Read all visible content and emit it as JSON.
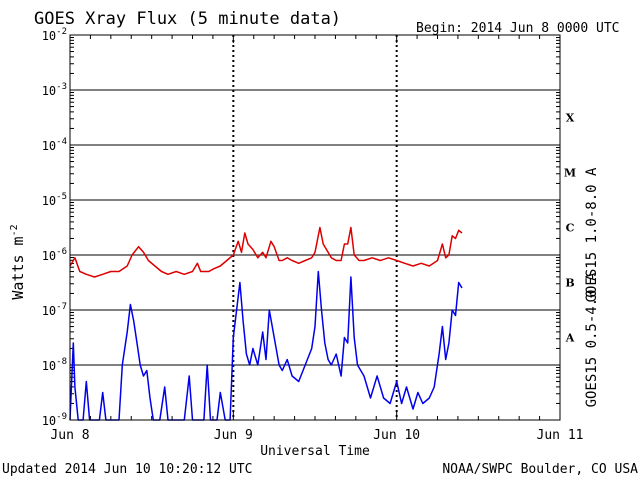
{
  "chart_data": {
    "type": "line",
    "title": "GOES Xray Flux (5 minute data)",
    "begin_label": "Begin:  2014 Jun 8 0000 UTC",
    "ylabel_main": "Watts m",
    "ylabel_sup": "-2",
    "xlabel": "Universal Time",
    "updated": "Updated 2014 Jun 10 10:20:12 UTC",
    "credit": "NOAA/SWPC Boulder, CO USA",
    "yscale": "log",
    "ylim_exp": [
      -9,
      -2
    ],
    "xlim_days": [
      0,
      3
    ],
    "x_ticks": [
      {
        "day": 0,
        "label": "Jun 8"
      },
      {
        "day": 1,
        "label": "Jun 9"
      },
      {
        "day": 2,
        "label": "Jun 10"
      },
      {
        "day": 3,
        "label": "Jun 11"
      }
    ],
    "y_ticks": [
      {
        "exp": -2,
        "base": "10",
        "sup": "-2"
      },
      {
        "exp": -3,
        "base": "10",
        "sup": "-3"
      },
      {
        "exp": -4,
        "base": "10",
        "sup": "-4"
      },
      {
        "exp": -5,
        "base": "10",
        "sup": "-5"
      },
      {
        "exp": -6,
        "base": "10",
        "sup": "-6"
      },
      {
        "exp": -7,
        "base": "10",
        "sup": "-7"
      },
      {
        "exp": -8,
        "base": "10",
        "sup": "-8"
      },
      {
        "exp": -9,
        "base": "10",
        "sup": "-9"
      }
    ],
    "flare_classes": [
      {
        "label": "X",
        "exp": -3.5
      },
      {
        "label": "M",
        "exp": -4.5
      },
      {
        "label": "C",
        "exp": -5.5
      },
      {
        "label": "B",
        "exp": -6.5
      },
      {
        "label": "A",
        "exp": -7.5
      }
    ],
    "series": [
      {
        "name": "GOES15 1.0-8.0 A",
        "color": "#dd0000",
        "points": [
          [
            0.0,
            -6.2
          ],
          [
            0.03,
            -6.05
          ],
          [
            0.06,
            -6.3
          ],
          [
            0.1,
            -6.35
          ],
          [
            0.15,
            -6.4
          ],
          [
            0.2,
            -6.35
          ],
          [
            0.25,
            -6.3
          ],
          [
            0.3,
            -6.3
          ],
          [
            0.35,
            -6.2
          ],
          [
            0.38,
            -6.0
          ],
          [
            0.42,
            -5.85
          ],
          [
            0.45,
            -5.95
          ],
          [
            0.48,
            -6.1
          ],
          [
            0.52,
            -6.2
          ],
          [
            0.56,
            -6.3
          ],
          [
            0.6,
            -6.35
          ],
          [
            0.65,
            -6.3
          ],
          [
            0.7,
            -6.35
          ],
          [
            0.75,
            -6.3
          ],
          [
            0.78,
            -6.15
          ],
          [
            0.8,
            -6.3
          ],
          [
            0.85,
            -6.3
          ],
          [
            0.88,
            -6.25
          ],
          [
            0.92,
            -6.2
          ],
          [
            0.96,
            -6.1
          ],
          [
            1.0,
            -6.0
          ],
          [
            1.03,
            -5.75
          ],
          [
            1.05,
            -5.95
          ],
          [
            1.07,
            -5.6
          ],
          [
            1.09,
            -5.8
          ],
          [
            1.12,
            -5.9
          ],
          [
            1.15,
            -6.05
          ],
          [
            1.18,
            -5.95
          ],
          [
            1.2,
            -6.05
          ],
          [
            1.23,
            -5.75
          ],
          [
            1.25,
            -5.85
          ],
          [
            1.28,
            -6.1
          ],
          [
            1.3,
            -6.1
          ],
          [
            1.33,
            -6.05
          ],
          [
            1.36,
            -6.1
          ],
          [
            1.4,
            -6.15
          ],
          [
            1.44,
            -6.1
          ],
          [
            1.48,
            -6.05
          ],
          [
            1.5,
            -5.95
          ],
          [
            1.53,
            -5.5
          ],
          [
            1.55,
            -5.8
          ],
          [
            1.58,
            -5.95
          ],
          [
            1.6,
            -6.05
          ],
          [
            1.63,
            -6.1
          ],
          [
            1.66,
            -6.1
          ],
          [
            1.68,
            -5.8
          ],
          [
            1.7,
            -5.8
          ],
          [
            1.72,
            -5.5
          ],
          [
            1.74,
            -6.0
          ],
          [
            1.77,
            -6.1
          ],
          [
            1.8,
            -6.1
          ],
          [
            1.85,
            -6.05
          ],
          [
            1.9,
            -6.1
          ],
          [
            1.95,
            -6.05
          ],
          [
            2.0,
            -6.1
          ],
          [
            2.05,
            -6.15
          ],
          [
            2.1,
            -6.2
          ],
          [
            2.15,
            -6.15
          ],
          [
            2.2,
            -6.2
          ],
          [
            2.25,
            -6.1
          ],
          [
            2.28,
            -5.8
          ],
          [
            2.3,
            -6.05
          ],
          [
            2.32,
            -6.0
          ],
          [
            2.34,
            -5.65
          ],
          [
            2.36,
            -5.7
          ],
          [
            2.38,
            -5.55
          ],
          [
            2.4,
            -5.6
          ]
        ]
      },
      {
        "name": "GOES15 0.5-4.0 A",
        "color": "#0000ee",
        "points": [
          [
            0.0,
            -9.0
          ],
          [
            0.02,
            -7.6
          ],
          [
            0.03,
            -8.4
          ],
          [
            0.05,
            -9.0
          ],
          [
            0.08,
            -9.0
          ],
          [
            0.1,
            -8.3
          ],
          [
            0.12,
            -9.0
          ],
          [
            0.18,
            -9.0
          ],
          [
            0.2,
            -8.5
          ],
          [
            0.22,
            -9.0
          ],
          [
            0.3,
            -9.0
          ],
          [
            0.32,
            -8.0
          ],
          [
            0.35,
            -7.4
          ],
          [
            0.37,
            -6.9
          ],
          [
            0.39,
            -7.2
          ],
          [
            0.41,
            -7.6
          ],
          [
            0.43,
            -8.0
          ],
          [
            0.45,
            -8.2
          ],
          [
            0.47,
            -8.1
          ],
          [
            0.49,
            -8.6
          ],
          [
            0.51,
            -9.0
          ],
          [
            0.55,
            -9.0
          ],
          [
            0.58,
            -8.4
          ],
          [
            0.6,
            -9.0
          ],
          [
            0.7,
            -9.0
          ],
          [
            0.73,
            -8.2
          ],
          [
            0.75,
            -9.0
          ],
          [
            0.82,
            -9.0
          ],
          [
            0.84,
            -8.0
          ],
          [
            0.86,
            -9.0
          ],
          [
            0.9,
            -9.0
          ],
          [
            0.92,
            -8.5
          ],
          [
            0.95,
            -9.0
          ],
          [
            0.98,
            -9.0
          ],
          [
            1.0,
            -7.5
          ],
          [
            1.02,
            -7.0
          ],
          [
            1.04,
            -6.5
          ],
          [
            1.06,
            -7.2
          ],
          [
            1.08,
            -7.8
          ],
          [
            1.1,
            -8.0
          ],
          [
            1.12,
            -7.7
          ],
          [
            1.15,
            -8.0
          ],
          [
            1.18,
            -7.4
          ],
          [
            1.2,
            -7.9
          ],
          [
            1.22,
            -7.0
          ],
          [
            1.25,
            -7.5
          ],
          [
            1.28,
            -8.0
          ],
          [
            1.3,
            -8.1
          ],
          [
            1.33,
            -7.9
          ],
          [
            1.36,
            -8.2
          ],
          [
            1.4,
            -8.3
          ],
          [
            1.44,
            -8.0
          ],
          [
            1.48,
            -7.7
          ],
          [
            1.5,
            -7.3
          ],
          [
            1.52,
            -6.3
          ],
          [
            1.54,
            -7.0
          ],
          [
            1.56,
            -7.6
          ],
          [
            1.58,
            -7.9
          ],
          [
            1.6,
            -8.0
          ],
          [
            1.63,
            -7.8
          ],
          [
            1.66,
            -8.2
          ],
          [
            1.68,
            -7.5
          ],
          [
            1.7,
            -7.6
          ],
          [
            1.72,
            -6.4
          ],
          [
            1.74,
            -7.5
          ],
          [
            1.76,
            -8.0
          ],
          [
            1.8,
            -8.2
          ],
          [
            1.84,
            -8.6
          ],
          [
            1.88,
            -8.2
          ],
          [
            1.92,
            -8.6
          ],
          [
            1.96,
            -8.7
          ],
          [
            2.0,
            -8.3
          ],
          [
            2.03,
            -8.7
          ],
          [
            2.06,
            -8.4
          ],
          [
            2.1,
            -8.8
          ],
          [
            2.13,
            -8.5
          ],
          [
            2.16,
            -8.7
          ],
          [
            2.2,
            -8.6
          ],
          [
            2.23,
            -8.4
          ],
          [
            2.26,
            -7.8
          ],
          [
            2.28,
            -7.3
          ],
          [
            2.3,
            -7.9
          ],
          [
            2.32,
            -7.6
          ],
          [
            2.34,
            -7.0
          ],
          [
            2.36,
            -7.1
          ],
          [
            2.38,
            -6.5
          ],
          [
            2.4,
            -6.6
          ]
        ]
      }
    ]
  }
}
